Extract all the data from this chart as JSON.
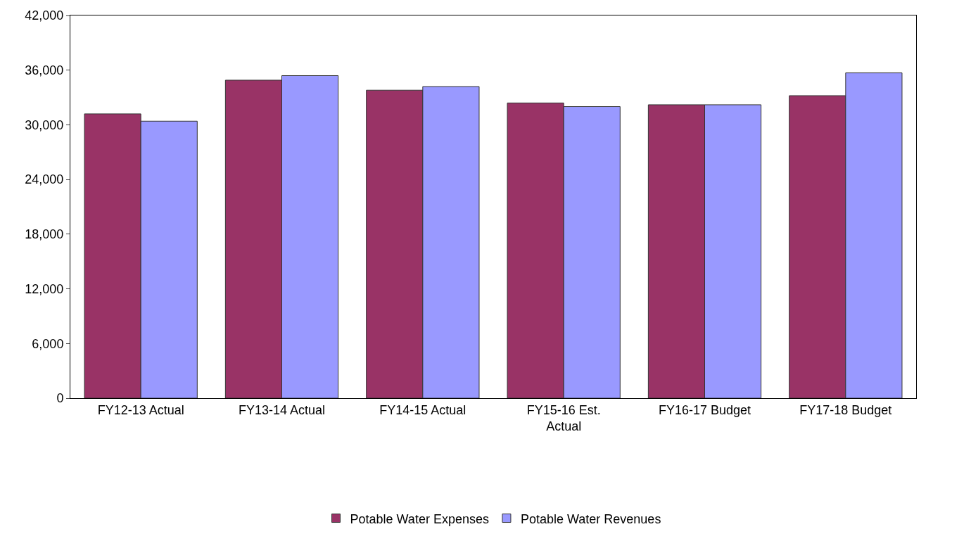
{
  "chart_data": {
    "type": "bar",
    "categories": [
      "FY12-13 Actual",
      "FY13-14 Actual",
      "FY14-15 Actual",
      "FY15-16 Est.\nActual",
      "FY16-17 Budget",
      "FY17-18 Budget"
    ],
    "series": [
      {
        "name": "Potable Water Expenses",
        "color": "#993366",
        "values": [
          31200,
          34900,
          33800,
          32400,
          32200,
          33200
        ]
      },
      {
        "name": "Potable Water Revenues",
        "color": "#9999ff",
        "values": [
          30400,
          35400,
          34200,
          32000,
          32200,
          35700
        ]
      }
    ],
    "ylim": [
      0,
      42000
    ],
    "yticks": [
      {
        "value": 0,
        "label": "0"
      },
      {
        "value": 6000,
        "label": "6,000"
      },
      {
        "value": 12000,
        "label": "12,000"
      },
      {
        "value": 18000,
        "label": "18,000"
      },
      {
        "value": 24000,
        "label": "24,000"
      },
      {
        "value": 30000,
        "label": "30,000"
      },
      {
        "value": 36000,
        "label": "36,000"
      },
      {
        "value": 42000,
        "label": "42,000"
      }
    ],
    "grid": false,
    "legend": "bottom"
  }
}
